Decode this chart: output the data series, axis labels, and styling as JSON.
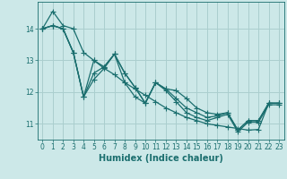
{
  "xlabel": "Humidex (Indice chaleur)",
  "ylabel": "",
  "xlim": [
    -0.5,
    23.5
  ],
  "ylim": [
    10.5,
    14.85
  ],
  "xticks": [
    0,
    1,
    2,
    3,
    4,
    5,
    6,
    7,
    8,
    9,
    10,
    11,
    12,
    13,
    14,
    15,
    16,
    17,
    18,
    19,
    20,
    21,
    22,
    23
  ],
  "yticks": [
    11,
    12,
    13,
    14
  ],
  "background_color": "#cce8e8",
  "grid_color": "#aacece",
  "line_color": "#1a6e6e",
  "series": [
    [
      14.0,
      14.55,
      14.1,
      14.0,
      13.25,
      13.0,
      12.75,
      12.55,
      12.3,
      12.1,
      11.9,
      11.7,
      11.5,
      11.35,
      11.2,
      11.1,
      11.0,
      10.95,
      10.9,
      10.85,
      10.8,
      10.82,
      11.65,
      11.65
    ],
    [
      14.0,
      14.1,
      14.0,
      13.25,
      11.85,
      13.0,
      12.8,
      13.2,
      12.6,
      12.15,
      11.65,
      12.3,
      12.1,
      12.05,
      11.8,
      11.5,
      11.35,
      11.3,
      11.35,
      10.8,
      11.1,
      11.1,
      11.65,
      11.65
    ],
    [
      14.0,
      14.1,
      14.0,
      13.25,
      11.85,
      12.6,
      12.8,
      13.2,
      12.6,
      12.15,
      11.65,
      12.3,
      12.1,
      11.8,
      11.5,
      11.35,
      11.2,
      11.25,
      11.35,
      10.8,
      11.1,
      11.1,
      11.65,
      11.65
    ],
    [
      14.0,
      14.1,
      14.0,
      13.25,
      11.85,
      12.4,
      12.75,
      13.2,
      12.3,
      11.85,
      11.65,
      12.3,
      12.05,
      11.7,
      11.35,
      11.2,
      11.1,
      11.2,
      11.3,
      10.75,
      11.05,
      11.05,
      11.6,
      11.6
    ]
  ],
  "marker": "+",
  "markersize": 4,
  "linewidth": 0.9,
  "tick_fontsize": 5.5,
  "xlabel_fontsize": 7
}
